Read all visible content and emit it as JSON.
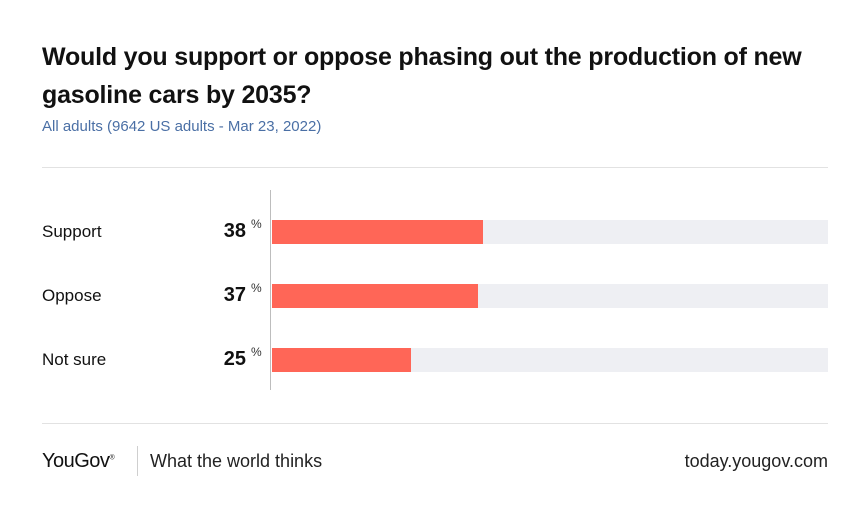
{
  "header": {
    "title": "Would you support or oppose phasing out the production of new gasoline cars by 2035?",
    "subtitle": "All adults (9642 US adults - Mar 23, 2022)"
  },
  "chart_data": {
    "type": "bar",
    "orientation": "horizontal",
    "title": "Would you support or oppose phasing out the production of new gasoline cars by 2035?",
    "subtitle": "All adults (9642 US adults - Mar 23, 2022)",
    "categories": [
      "Support",
      "Oppose",
      "Not sure"
    ],
    "values": [
      38,
      37,
      25
    ],
    "value_suffix": "%",
    "xlim": [
      0,
      100
    ],
    "xlabel": "",
    "ylabel": "",
    "bar_color": "#ff6657",
    "track_color": "#eeeff3"
  },
  "footer": {
    "logo": "YouGov",
    "logo_mark": "®",
    "tagline": "What the world thinks",
    "url": "today.yougov.com"
  }
}
